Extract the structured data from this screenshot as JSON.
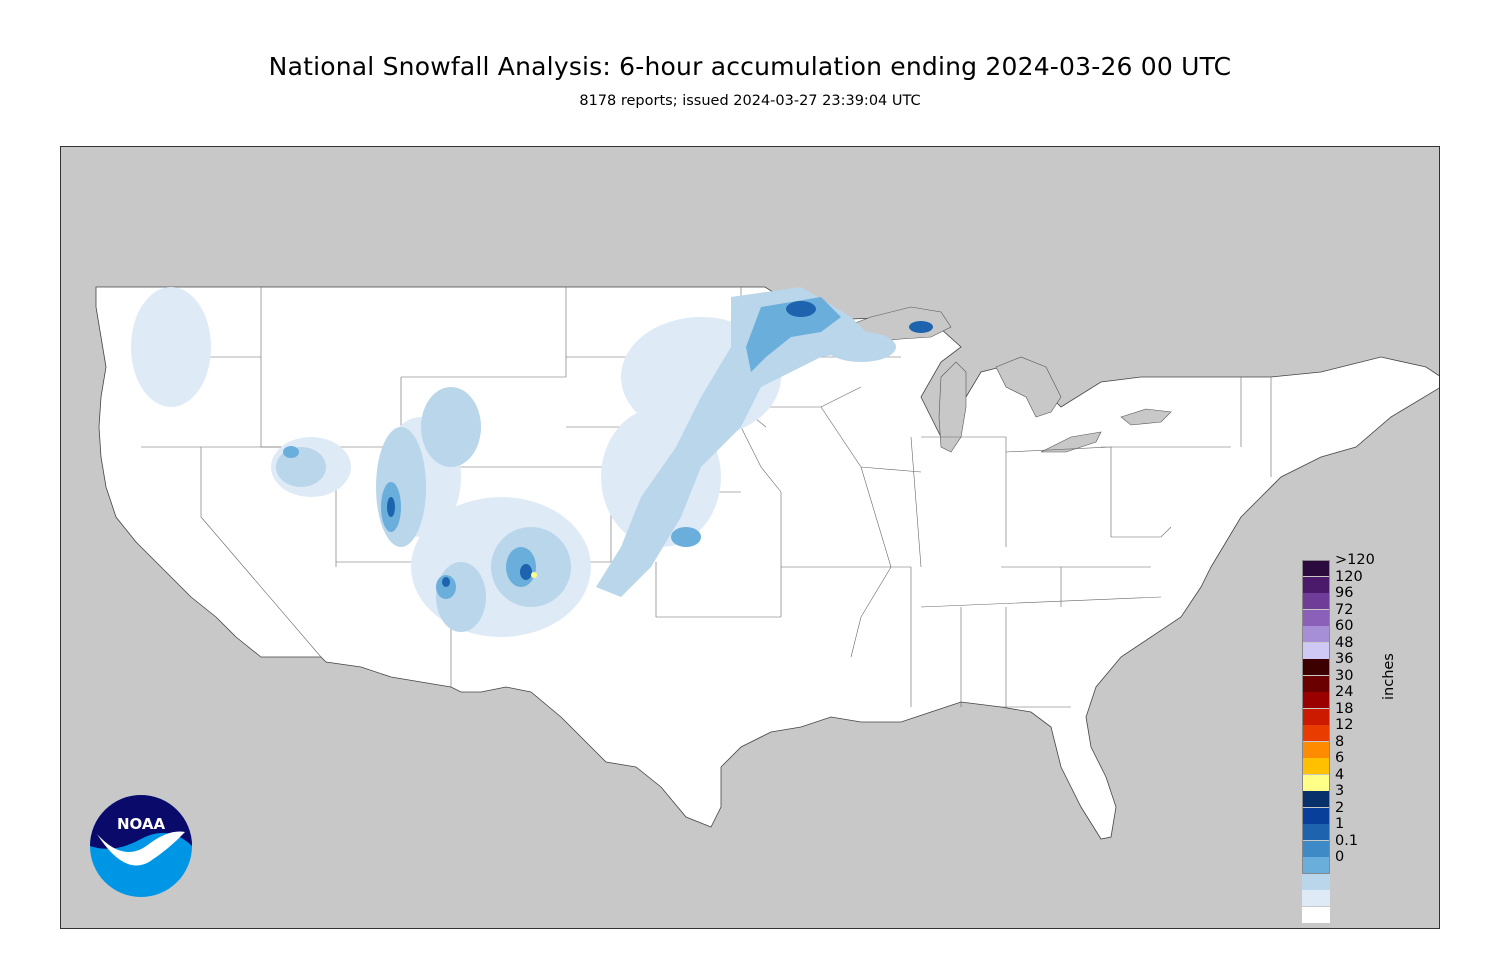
{
  "title": "National Snowfall Analysis: 6-hour accumulation ending 2024-03-26 00 UTC",
  "subtitle": "8178 reports; issued 2024-03-27 23:39:04 UTC",
  "legend": {
    "units_label": "inches",
    "bins": [
      {
        "label": ">120",
        "color": "#2b0a3d"
      },
      {
        "label": "120",
        "color": "#4b1a6b"
      },
      {
        "label": "96",
        "color": "#6f3d97"
      },
      {
        "label": "72",
        "color": "#8a60b8"
      },
      {
        "label": "60",
        "color": "#a68fd6"
      },
      {
        "label": "48",
        "color": "#cfc9f5"
      },
      {
        "label": "36",
        "color": "#3d0000"
      },
      {
        "label": "30",
        "color": "#6a0000"
      },
      {
        "label": "24",
        "color": "#9a0000"
      },
      {
        "label": "18",
        "color": "#cc1a00"
      },
      {
        "label": "12",
        "color": "#e83c00"
      },
      {
        "label": "8",
        "color": "#ff8c00"
      },
      {
        "label": "6",
        "color": "#ffc000"
      },
      {
        "label": "4",
        "color": "#ffff88"
      },
      {
        "label": "3",
        "color": "#08306b"
      },
      {
        "label": "2",
        "color": "#083f9a"
      },
      {
        "label": "1",
        "color": "#1d63ad"
      },
      {
        "label": "0.1",
        "color": "#3d8ac6"
      },
      {
        "label": "0",
        "color": "#6aaedb"
      }
    ],
    "lower_bins": [
      {
        "label": "",
        "color": "#b9d6ea"
      },
      {
        "label": "",
        "color": "#deebf7"
      },
      {
        "label": "",
        "color": "#ffffff"
      }
    ]
  },
  "logo": {
    "text": "NOAA",
    "primary_color": "#0a0a6b",
    "secondary_color": "#0096e6"
  },
  "map": {
    "land_color": "#ffffff",
    "outside_color": "#c8c8c8",
    "border_color": "#555555"
  }
}
